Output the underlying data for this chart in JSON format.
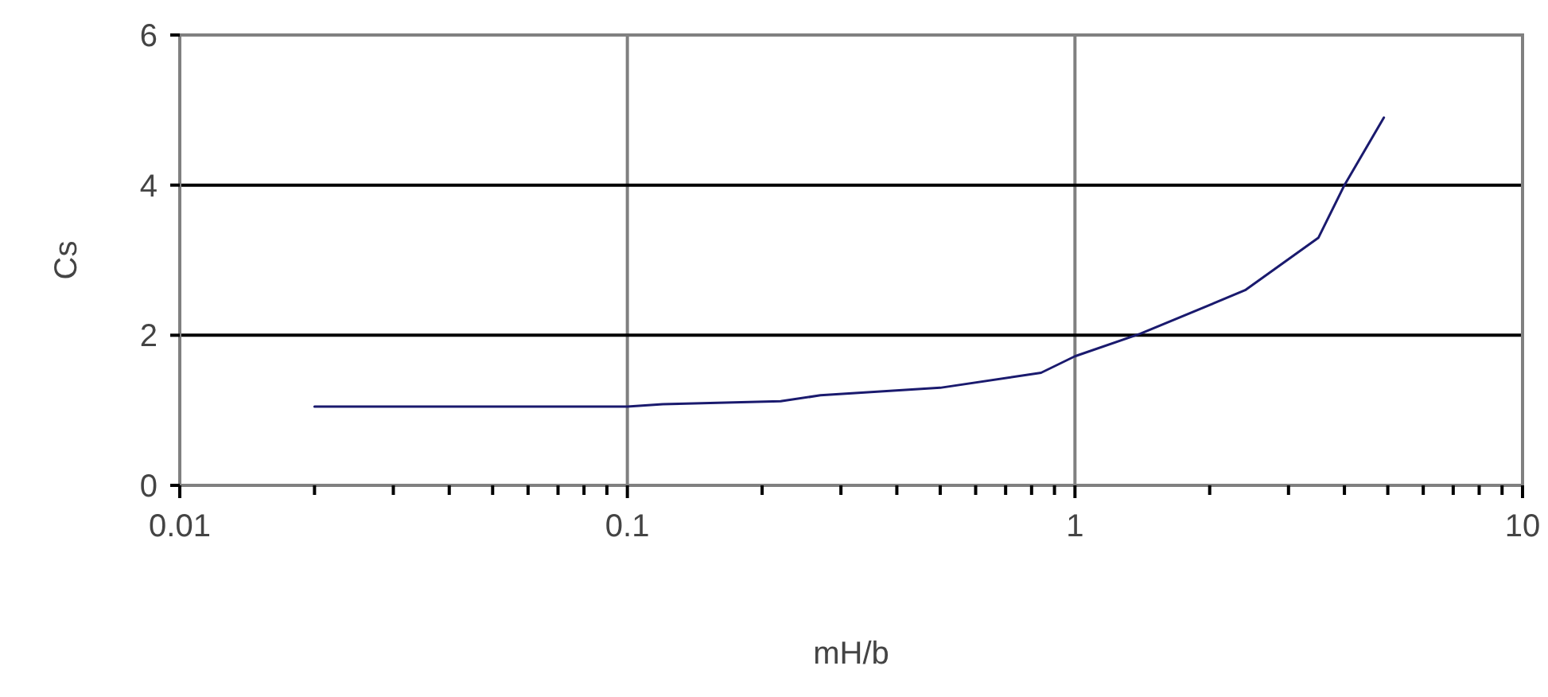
{
  "chart_data": {
    "type": "line",
    "xlabel": "mH/b",
    "ylabel": "Cs",
    "log": "x",
    "grid": true,
    "marker": "none",
    "line_style": "solid",
    "x": [
      0.02,
      0.1,
      0.12,
      0.22,
      0.27,
      0.5,
      0.84,
      1,
      1.4,
      2.4,
      3.5,
      4,
      4.9
    ],
    "series": [
      {
        "color": "#1a1a6e",
        "values": [
          1.05,
          1.05,
          1.08,
          1.12,
          1.2,
          1.3,
          1.5,
          1.72,
          2.02,
          2.6,
          3.3,
          4,
          4.9
        ]
      }
    ],
    "xlim": [
      0.01,
      10
    ],
    "ylim": [
      0,
      6
    ],
    "xticks": [
      0.01,
      {
        "value": 0.02,
        "label": null
      },
      {
        "value": 0.03,
        "label": null
      },
      {
        "value": 0.04,
        "label": null
      },
      {
        "value": 0.05,
        "label": null
      },
      {
        "value": 0.06,
        "label": null
      },
      {
        "value": 0.07,
        "label": null
      },
      {
        "value": 0.08,
        "label": null
      },
      {
        "value": 0.09,
        "label": null
      },
      0.1,
      {
        "value": 0.2,
        "label": null
      },
      {
        "value": 0.3,
        "label": null
      },
      {
        "value": 0.4,
        "label": null
      },
      {
        "value": 0.5,
        "label": null
      },
      {
        "value": 0.6,
        "label": null
      },
      {
        "value": 0.7,
        "label": null
      },
      {
        "value": 0.8,
        "label": null
      },
      {
        "value": 0.9,
        "label": null
      },
      1,
      {
        "value": 2,
        "label": null
      },
      {
        "value": 3,
        "label": null
      },
      {
        "value": 4,
        "label": null
      },
      {
        "value": 5,
        "label": null
      },
      {
        "value": 6,
        "label": null
      },
      {
        "value": 7,
        "label": null
      },
      {
        "value": 8,
        "label": null
      },
      {
        "value": 9,
        "label": null
      },
      10
    ],
    "yticks": [
      0,
      2,
      4,
      6
    ]
  }
}
